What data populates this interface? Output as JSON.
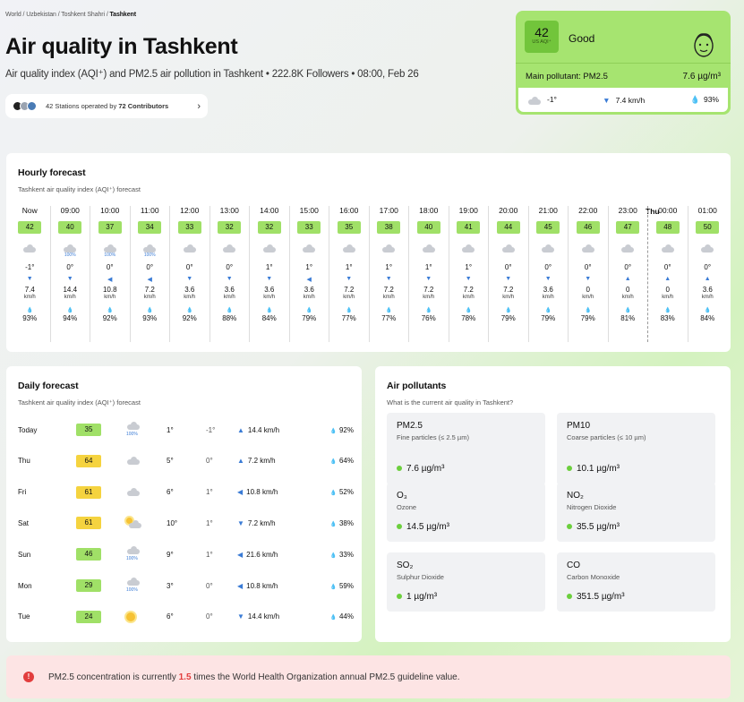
{
  "breadcrumb": {
    "world": "World",
    "country": "Uzbekistan",
    "region": "Toshkent Shahri",
    "city": "Tashkent"
  },
  "title": "Air quality in Tashkent",
  "subtitle": "Air quality index (AQI⁺) and PM2.5 air pollution in Tashkent • 222.8K Followers • 08:00, Feb 26",
  "stations": {
    "prefix": "42 Stations operated by",
    "contributors": "72 Contributors"
  },
  "aqi_card": {
    "value": "42",
    "unit": "US AQI⁺",
    "status": "Good",
    "main_pollutant_label": "Main pollutant: PM2.5",
    "main_pollutant_value": "7.6 µg/m³",
    "temp": "-1°",
    "wind": "7.4 km/h",
    "humidity": "93%",
    "colors": {
      "card": "#a6e470",
      "box": "#72c53b"
    }
  },
  "hourly": {
    "title": "Hourly forecast",
    "subtitle": "Tashkent air quality index (AQI⁺) forecast",
    "day_marker": "Thu",
    "hours": [
      {
        "time": "Now",
        "aqi": "42",
        "rain": "",
        "temp": "-1°",
        "wind": "7.4",
        "unit": "km/h",
        "hum": "93%",
        "dir": "▼"
      },
      {
        "time": "09:00",
        "aqi": "40",
        "rain": "100%",
        "temp": "0°",
        "wind": "14.4",
        "unit": "km/h",
        "hum": "94%",
        "dir": "▼"
      },
      {
        "time": "10:00",
        "aqi": "37",
        "rain": "100%",
        "temp": "0°",
        "wind": "10.8",
        "unit": "km/h",
        "hum": "92%",
        "dir": "◀"
      },
      {
        "time": "11:00",
        "aqi": "34",
        "rain": "100%",
        "temp": "0°",
        "wind": "7.2",
        "unit": "km/h",
        "hum": "93%",
        "dir": "◀"
      },
      {
        "time": "12:00",
        "aqi": "33",
        "rain": "",
        "temp": "0°",
        "wind": "3.6",
        "unit": "km/h",
        "hum": "92%",
        "dir": "▼"
      },
      {
        "time": "13:00",
        "aqi": "32",
        "rain": "",
        "temp": "0°",
        "wind": "3.6",
        "unit": "km/h",
        "hum": "88%",
        "dir": "▼"
      },
      {
        "time": "14:00",
        "aqi": "32",
        "rain": "",
        "temp": "1°",
        "wind": "3.6",
        "unit": "km/h",
        "hum": "84%",
        "dir": "▼"
      },
      {
        "time": "15:00",
        "aqi": "33",
        "rain": "",
        "temp": "1°",
        "wind": "3.6",
        "unit": "km/h",
        "hum": "79%",
        "dir": "◀"
      },
      {
        "time": "16:00",
        "aqi": "35",
        "rain": "",
        "temp": "1°",
        "wind": "7.2",
        "unit": "km/h",
        "hum": "77%",
        "dir": "▼"
      },
      {
        "time": "17:00",
        "aqi": "38",
        "rain": "",
        "temp": "1°",
        "wind": "7.2",
        "unit": "km/h",
        "hum": "77%",
        "dir": "▼"
      },
      {
        "time": "18:00",
        "aqi": "40",
        "rain": "",
        "temp": "1°",
        "wind": "7.2",
        "unit": "km/h",
        "hum": "76%",
        "dir": "▼"
      },
      {
        "time": "19:00",
        "aqi": "41",
        "rain": "",
        "temp": "1°",
        "wind": "7.2",
        "unit": "km/h",
        "hum": "78%",
        "dir": "▼"
      },
      {
        "time": "20:00",
        "aqi": "44",
        "rain": "",
        "temp": "0°",
        "wind": "7.2",
        "unit": "km/h",
        "hum": "79%",
        "dir": "▼"
      },
      {
        "time": "21:00",
        "aqi": "45",
        "rain": "",
        "temp": "0°",
        "wind": "3.6",
        "unit": "km/h",
        "hum": "79%",
        "dir": "▼"
      },
      {
        "time": "22:00",
        "aqi": "46",
        "rain": "",
        "temp": "0°",
        "wind": "0",
        "unit": "km/h",
        "hum": "79%",
        "dir": "▼"
      },
      {
        "time": "23:00",
        "aqi": "47",
        "rain": "",
        "temp": "0°",
        "wind": "0",
        "unit": "km/h",
        "hum": "81%",
        "dir": "▲"
      },
      {
        "time": "00:00",
        "aqi": "48",
        "rain": "",
        "temp": "0°",
        "wind": "0",
        "unit": "km/h",
        "hum": "83%",
        "dir": "▲"
      },
      {
        "time": "01:00",
        "aqi": "50",
        "rain": "",
        "temp": "0°",
        "wind": "3.6",
        "unit": "km/h",
        "hum": "84%",
        "dir": "▲"
      }
    ]
  },
  "daily": {
    "title": "Daily forecast",
    "subtitle": "Tashkent air quality index (AQI⁺) forecast",
    "days": [
      {
        "day": "Today",
        "aqi": "35",
        "level": "good",
        "icon": "cloud",
        "rain": "100%",
        "hi": "1°",
        "lo": "-1°",
        "dir": "▲",
        "wind": "14.4 km/h",
        "hum": "92%"
      },
      {
        "day": "Thu",
        "aqi": "64",
        "level": "moderate",
        "icon": "cloud",
        "rain": "",
        "hi": "5°",
        "lo": "0°",
        "dir": "▲",
        "wind": "7.2 km/h",
        "hum": "64%"
      },
      {
        "day": "Fri",
        "aqi": "61",
        "level": "moderate",
        "icon": "cloud",
        "rain": "",
        "hi": "6°",
        "lo": "1°",
        "dir": "◀",
        "wind": "10.8 km/h",
        "hum": "52%"
      },
      {
        "day": "Sat",
        "aqi": "61",
        "level": "moderate",
        "icon": "partly-sunny",
        "rain": "",
        "hi": "10°",
        "lo": "1°",
        "dir": "▼",
        "wind": "7.2 km/h",
        "hum": "38%"
      },
      {
        "day": "Sun",
        "aqi": "46",
        "level": "good",
        "icon": "cloud",
        "rain": "100%",
        "hi": "9°",
        "lo": "1°",
        "dir": "◀",
        "wind": "21.6 km/h",
        "hum": "33%"
      },
      {
        "day": "Mon",
        "aqi": "29",
        "level": "good",
        "icon": "cloud",
        "rain": "100%",
        "hi": "3°",
        "lo": "0°",
        "dir": "◀",
        "wind": "10.8 km/h",
        "hum": "59%"
      },
      {
        "day": "Tue",
        "aqi": "24",
        "level": "good",
        "icon": "sun",
        "rain": "",
        "hi": "6°",
        "lo": "0°",
        "dir": "▼",
        "wind": "14.4 km/h",
        "hum": "44%"
      }
    ]
  },
  "pollutants": {
    "title": "Air pollutants",
    "subtitle": "What is the current air quality in Tashkent?",
    "items": [
      {
        "name": "PM2.5",
        "desc": "Fine particles (≤ 2.5 µm)",
        "value": "7.6",
        "unit": "µg/m³"
      },
      {
        "name": "PM10",
        "desc": "Coarse particles (≤ 10 µm)",
        "value": "10.1",
        "unit": "µg/m³"
      },
      {
        "name": "O₃",
        "desc": "Ozone",
        "value": "14.5",
        "unit": "µg/m³"
      },
      {
        "name": "NO₂",
        "desc": "Nitrogen Dioxide",
        "value": "35.5",
        "unit": "µg/m³"
      },
      {
        "name": "SO₂",
        "desc": "Sulphur Dioxide",
        "value": "1",
        "unit": "µg/m³"
      },
      {
        "name": "CO",
        "desc": "Carbon Monoxide",
        "value": "351.5",
        "unit": "µg/m³"
      }
    ]
  },
  "alert": {
    "pre": "PM2.5 concentration is currently ",
    "times": "1.5",
    "post": " times the World Health Organization annual PM2.5 guideline value."
  },
  "colors": {
    "good": "#a0e067",
    "moderate": "#f5d33f",
    "alert": "#e23d3d"
  }
}
